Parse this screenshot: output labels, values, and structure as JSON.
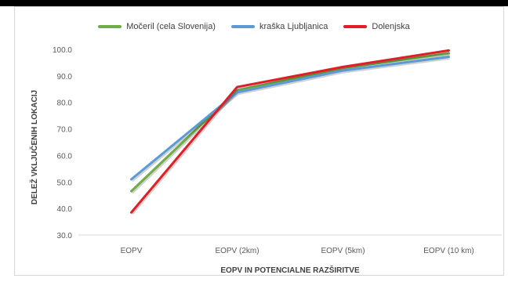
{
  "chart_data": {
    "type": "line",
    "categories": [
      "EOPV",
      "EOPV (2km)",
      "EOPV (5km)",
      "EOPV (10 km)"
    ],
    "series": [
      {
        "name": "Močeril (cela Slovenija)",
        "color": "#70ad47",
        "values": [
          46.5,
          84.5,
          93.0,
          98.5
        ]
      },
      {
        "name": "kraška Ljubljanica",
        "color": "#5b9bd5",
        "values": [
          51.0,
          83.8,
          92.0,
          97.2
        ]
      },
      {
        "name": "Dolenjska",
        "color": "#e01e26",
        "values": [
          38.5,
          85.8,
          93.4,
          99.6
        ]
      }
    ],
    "xlabel": "EOPV IN POTENCIALNE RAZŠIRITVE",
    "ylabel": "DELEŽ VKLJUČENIH LOKACIJ",
    "ylim": [
      30,
      100
    ],
    "yticks": [
      "30.0",
      "40.0",
      "50.0",
      "60.0",
      "70.0",
      "80.0",
      "90.0",
      "100.0"
    ],
    "grid": false,
    "legend_position": "top"
  }
}
